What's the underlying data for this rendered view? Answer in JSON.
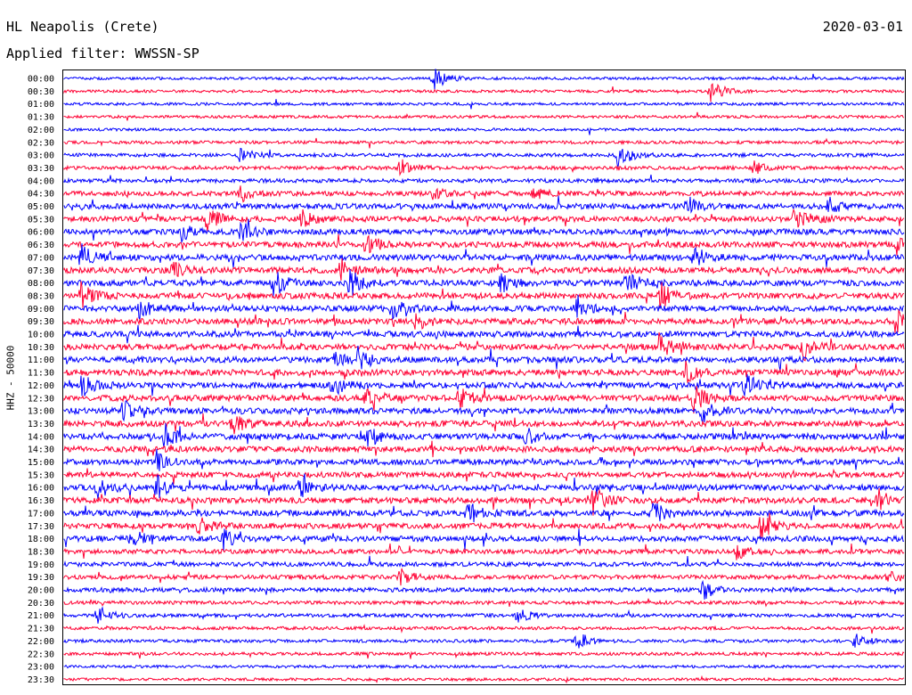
{
  "header": {
    "station": "HL Neapolis (Crete)",
    "date": "2020-03-01",
    "filter_label": "Applied filter: WWSSN-SP"
  },
  "colors": {
    "blue": "#0000ff",
    "red": "#ff0033"
  },
  "chart_data": {
    "type": "line",
    "title": "",
    "ylabel": "HHZ - 50000",
    "xlabel": "",
    "grid": false,
    "legend": "none",
    "trace_colors_alternate": [
      "#0000ff",
      "#ff0033"
    ],
    "rows": [
      "00:00",
      "00:30",
      "01:00",
      "01:30",
      "02:00",
      "02:30",
      "03:00",
      "03:30",
      "04:00",
      "04:30",
      "05:00",
      "05:30",
      "06:00",
      "06:30",
      "07:00",
      "07:30",
      "08:00",
      "08:30",
      "09:00",
      "09:30",
      "10:00",
      "10:30",
      "11:00",
      "11:30",
      "12:00",
      "12:30",
      "13:00",
      "13:30",
      "14:00",
      "14:30",
      "15:00",
      "15:30",
      "16:00",
      "16:30",
      "17:00",
      "17:30",
      "18:00",
      "18:30",
      "19:00",
      "19:30",
      "20:00",
      "20:30",
      "21:00",
      "21:30",
      "22:00",
      "22:30",
      "23:00",
      "23:30"
    ],
    "row_activity": [
      0.2,
      0.2,
      0.2,
      0.2,
      0.2,
      0.3,
      0.4,
      0.4,
      0.5,
      0.7,
      0.9,
      0.9,
      0.9,
      1.0,
      1.0,
      1.0,
      1.0,
      1.0,
      1.0,
      1.0,
      1.0,
      1.0,
      1.0,
      1.0,
      1.0,
      1.0,
      1.0,
      1.0,
      1.0,
      1.0,
      0.9,
      0.9,
      1.0,
      1.0,
      1.0,
      0.9,
      0.9,
      0.7,
      0.6,
      0.6,
      0.6,
      0.4,
      0.4,
      0.3,
      0.3,
      0.3,
      0.2,
      0.2
    ],
    "events": [
      {
        "row": "00:00",
        "t": 0.44,
        "amp": 1.0
      },
      {
        "row": "00:30",
        "t": 0.77,
        "amp": 1.0
      },
      {
        "row": "03:00",
        "t": 0.21,
        "amp": 0.6
      },
      {
        "row": "03:00",
        "t": 0.66,
        "amp": 1.0
      },
      {
        "row": "03:30",
        "t": 0.4,
        "amp": 0.7
      },
      {
        "row": "03:30",
        "t": 0.82,
        "amp": 0.5
      },
      {
        "row": "04:30",
        "t": 0.21,
        "amp": 0.6
      },
      {
        "row": "04:30",
        "t": 0.44,
        "amp": 0.4
      },
      {
        "row": "04:30",
        "t": 0.56,
        "amp": 0.4
      },
      {
        "row": "05:00",
        "t": 0.74,
        "amp": 0.9
      },
      {
        "row": "05:00",
        "t": 0.91,
        "amp": 0.7
      },
      {
        "row": "05:30",
        "t": 0.17,
        "amp": 1.0
      },
      {
        "row": "05:30",
        "t": 0.28,
        "amp": 0.8
      },
      {
        "row": "05:30",
        "t": 0.87,
        "amp": 1.0
      },
      {
        "row": "06:00",
        "t": 0.14,
        "amp": 0.6
      },
      {
        "row": "06:00",
        "t": 0.21,
        "amp": 0.9
      },
      {
        "row": "06:30",
        "t": 0.36,
        "amp": 0.8
      },
      {
        "row": "06:30",
        "t": 0.99,
        "amp": 0.7
      },
      {
        "row": "07:00",
        "t": 0.02,
        "amp": 1.0
      },
      {
        "row": "07:00",
        "t": 0.75,
        "amp": 0.8
      },
      {
        "row": "07:30",
        "t": 0.13,
        "amp": 0.6
      },
      {
        "row": "07:30",
        "t": 0.33,
        "amp": 0.8
      },
      {
        "row": "08:00",
        "t": 0.25,
        "amp": 1.0
      },
      {
        "row": "08:00",
        "t": 0.34,
        "amp": 1.0
      },
      {
        "row": "08:00",
        "t": 0.52,
        "amp": 0.7
      },
      {
        "row": "08:00",
        "t": 0.67,
        "amp": 1.0
      },
      {
        "row": "08:30",
        "t": 0.02,
        "amp": 0.9
      },
      {
        "row": "08:30",
        "t": 0.71,
        "amp": 1.0
      },
      {
        "row": "09:00",
        "t": 0.09,
        "amp": 0.7
      },
      {
        "row": "09:00",
        "t": 0.39,
        "amp": 0.8
      },
      {
        "row": "09:00",
        "t": 0.61,
        "amp": 0.6
      },
      {
        "row": "09:30",
        "t": 0.42,
        "amp": 0.6
      },
      {
        "row": "09:30",
        "t": 0.99,
        "amp": 1.0
      },
      {
        "row": "10:30",
        "t": 0.71,
        "amp": 0.8
      },
      {
        "row": "10:30",
        "t": 0.88,
        "amp": 1.0
      },
      {
        "row": "11:00",
        "t": 0.32,
        "amp": 0.7
      },
      {
        "row": "11:00",
        "t": 0.35,
        "amp": 0.9
      },
      {
        "row": "11:30",
        "t": 0.74,
        "amp": 0.7
      },
      {
        "row": "12:00",
        "t": 0.02,
        "amp": 1.0
      },
      {
        "row": "12:00",
        "t": 0.32,
        "amp": 0.8
      },
      {
        "row": "12:00",
        "t": 0.81,
        "amp": 0.9
      },
      {
        "row": "12:30",
        "t": 0.36,
        "amp": 1.0
      },
      {
        "row": "12:30",
        "t": 0.47,
        "amp": 0.9
      },
      {
        "row": "12:30",
        "t": 0.75,
        "amp": 1.0
      },
      {
        "row": "13:00",
        "t": 0.07,
        "amp": 0.8
      },
      {
        "row": "13:00",
        "t": 0.76,
        "amp": 0.9
      },
      {
        "row": "13:30",
        "t": 0.2,
        "amp": 0.8
      },
      {
        "row": "14:00",
        "t": 0.12,
        "amp": 0.9
      },
      {
        "row": "14:00",
        "t": 0.36,
        "amp": 1.0
      },
      {
        "row": "14:00",
        "t": 0.55,
        "amp": 0.6
      },
      {
        "row": "15:00",
        "t": 0.11,
        "amp": 0.8
      },
      {
        "row": "16:00",
        "t": 0.04,
        "amp": 0.9
      },
      {
        "row": "16:00",
        "t": 0.11,
        "amp": 0.9
      },
      {
        "row": "16:00",
        "t": 0.28,
        "amp": 0.7
      },
      {
        "row": "16:30",
        "t": 0.63,
        "amp": 1.0
      },
      {
        "row": "16:30",
        "t": 0.97,
        "amp": 0.7
      },
      {
        "row": "17:00",
        "t": 0.48,
        "amp": 1.0
      },
      {
        "row": "17:00",
        "t": 0.7,
        "amp": 1.0
      },
      {
        "row": "17:30",
        "t": 0.16,
        "amp": 0.9
      },
      {
        "row": "17:30",
        "t": 0.83,
        "amp": 1.0
      },
      {
        "row": "18:00",
        "t": 0.08,
        "amp": 0.8
      },
      {
        "row": "18:00",
        "t": 0.19,
        "amp": 0.8
      },
      {
        "row": "18:30",
        "t": 0.8,
        "amp": 0.7
      },
      {
        "row": "19:30",
        "t": 0.4,
        "amp": 0.6
      },
      {
        "row": "19:30",
        "t": 0.98,
        "amp": 0.7
      },
      {
        "row": "20:00",
        "t": 0.76,
        "amp": 0.8
      },
      {
        "row": "21:00",
        "t": 0.04,
        "amp": 0.8
      },
      {
        "row": "21:00",
        "t": 0.54,
        "amp": 0.6
      },
      {
        "row": "22:00",
        "t": 0.61,
        "amp": 0.8
      },
      {
        "row": "22:00",
        "t": 0.94,
        "amp": 0.6
      }
    ]
  }
}
